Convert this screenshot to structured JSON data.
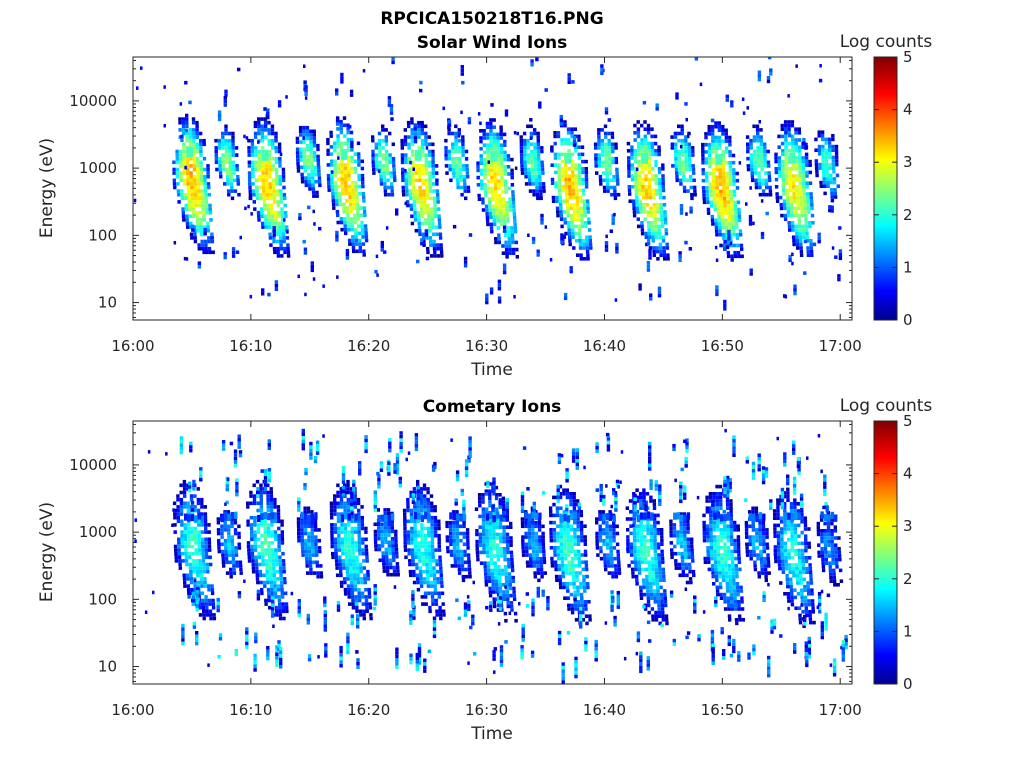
{
  "figure_title": "RPCICA150218T16.PNG",
  "colors": {
    "colormap": "jet",
    "background": "#ffffff",
    "axis": "#262626"
  },
  "chart_data": [
    {
      "type": "heatmap",
      "title": "Solar Wind Ions",
      "xlabel": "Time",
      "ylabel": "Energy (eV)",
      "x_range": [
        "16:00",
        "17:01"
      ],
      "x_ticks": [
        "16:00",
        "16:10",
        "16:20",
        "16:30",
        "16:40",
        "16:50",
        "17:00"
      ],
      "y_scale": "log",
      "y_range": [
        5.5,
        45000
      ],
      "y_ticks": [
        "10",
        "100",
        "1000",
        "10000"
      ],
      "colorbar": {
        "label": "Log counts",
        "range": [
          0,
          5
        ],
        "ticks": [
          "0",
          "1",
          "2",
          "3",
          "4",
          "5"
        ]
      },
      "grid": false,
      "bursts": [
        {
          "t": 4.8,
          "e": 700,
          "peak": 3.5,
          "kind": "main"
        },
        {
          "t": 7.8,
          "e": 1300,
          "peak": 2.6,
          "kind": "minor"
        },
        {
          "t": 11.2,
          "e": 620,
          "peak": 3.4,
          "kind": "main"
        },
        {
          "t": 14.7,
          "e": 1400,
          "peak": 2.5,
          "kind": "minor"
        },
        {
          "t": 17.9,
          "e": 640,
          "peak": 3.4,
          "kind": "main"
        },
        {
          "t": 21.1,
          "e": 1300,
          "peak": 2.5,
          "kind": "minor"
        },
        {
          "t": 24.2,
          "e": 620,
          "peak": 3.3,
          "kind": "main"
        },
        {
          "t": 27.3,
          "e": 1300,
          "peak": 2.4,
          "kind": "minor"
        },
        {
          "t": 30.6,
          "e": 600,
          "peak": 3.3,
          "kind": "main"
        },
        {
          "t": 33.7,
          "e": 1300,
          "peak": 2.4,
          "kind": "minor"
        },
        {
          "t": 36.9,
          "e": 560,
          "peak": 3.5,
          "kind": "main"
        },
        {
          "t": 40.0,
          "e": 1300,
          "peak": 2.5,
          "kind": "minor"
        },
        {
          "t": 43.4,
          "e": 560,
          "peak": 3.4,
          "kind": "main"
        },
        {
          "t": 46.5,
          "e": 1300,
          "peak": 2.5,
          "kind": "minor"
        },
        {
          "t": 49.7,
          "e": 540,
          "peak": 3.5,
          "kind": "main"
        },
        {
          "t": 52.9,
          "e": 1300,
          "peak": 2.4,
          "kind": "minor"
        },
        {
          "t": 55.9,
          "e": 560,
          "peak": 3.2,
          "kind": "main"
        },
        {
          "t": 58.7,
          "e": 1200,
          "peak": 2.2,
          "kind": "minor"
        }
      ]
    },
    {
      "type": "heatmap",
      "title": "Cometary Ions",
      "xlabel": "Time",
      "ylabel": "Energy (eV)",
      "x_range": [
        "16:00",
        "17:01"
      ],
      "x_ticks": [
        "16:00",
        "16:10",
        "16:20",
        "16:30",
        "16:40",
        "16:50",
        "17:00"
      ],
      "y_scale": "log",
      "y_range": [
        5.5,
        45000
      ],
      "y_ticks": [
        "10",
        "100",
        "1000",
        "10000"
      ],
      "colorbar": {
        "label": "Log counts",
        "range": [
          0,
          5
        ],
        "ticks": [
          "0",
          "1",
          "2",
          "3",
          "4",
          "5"
        ]
      },
      "grid": false,
      "bursts": [
        {
          "t": 4.9,
          "e": 650,
          "peak": 2.1,
          "kind": "main"
        },
        {
          "t": 8.0,
          "e": 700,
          "peak": 1.6,
          "kind": "minor"
        },
        {
          "t": 11.1,
          "e": 650,
          "peak": 2.2,
          "kind": "main"
        },
        {
          "t": 14.8,
          "e": 700,
          "peak": 1.5,
          "kind": "minor"
        },
        {
          "t": 18.2,
          "e": 650,
          "peak": 2.0,
          "kind": "main"
        },
        {
          "t": 21.3,
          "e": 750,
          "peak": 1.5,
          "kind": "minor"
        },
        {
          "t": 24.4,
          "e": 650,
          "peak": 2.0,
          "kind": "main"
        },
        {
          "t": 27.4,
          "e": 700,
          "peak": 1.5,
          "kind": "minor"
        },
        {
          "t": 30.5,
          "e": 600,
          "peak": 2.0,
          "kind": "main"
        },
        {
          "t": 33.8,
          "e": 700,
          "peak": 1.5,
          "kind": "minor"
        },
        {
          "t": 36.8,
          "e": 550,
          "peak": 2.2,
          "kind": "main"
        },
        {
          "t": 40.1,
          "e": 700,
          "peak": 1.6,
          "kind": "minor"
        },
        {
          "t": 43.3,
          "e": 550,
          "peak": 2.1,
          "kind": "main"
        },
        {
          "t": 46.4,
          "e": 650,
          "peak": 1.6,
          "kind": "minor"
        },
        {
          "t": 49.8,
          "e": 550,
          "peak": 2.1,
          "kind": "main"
        },
        {
          "t": 52.8,
          "e": 700,
          "peak": 1.5,
          "kind": "minor"
        },
        {
          "t": 55.8,
          "e": 500,
          "peak": 2.0,
          "kind": "main"
        },
        {
          "t": 58.9,
          "e": 600,
          "peak": 1.3,
          "kind": "minor"
        }
      ]
    }
  ]
}
